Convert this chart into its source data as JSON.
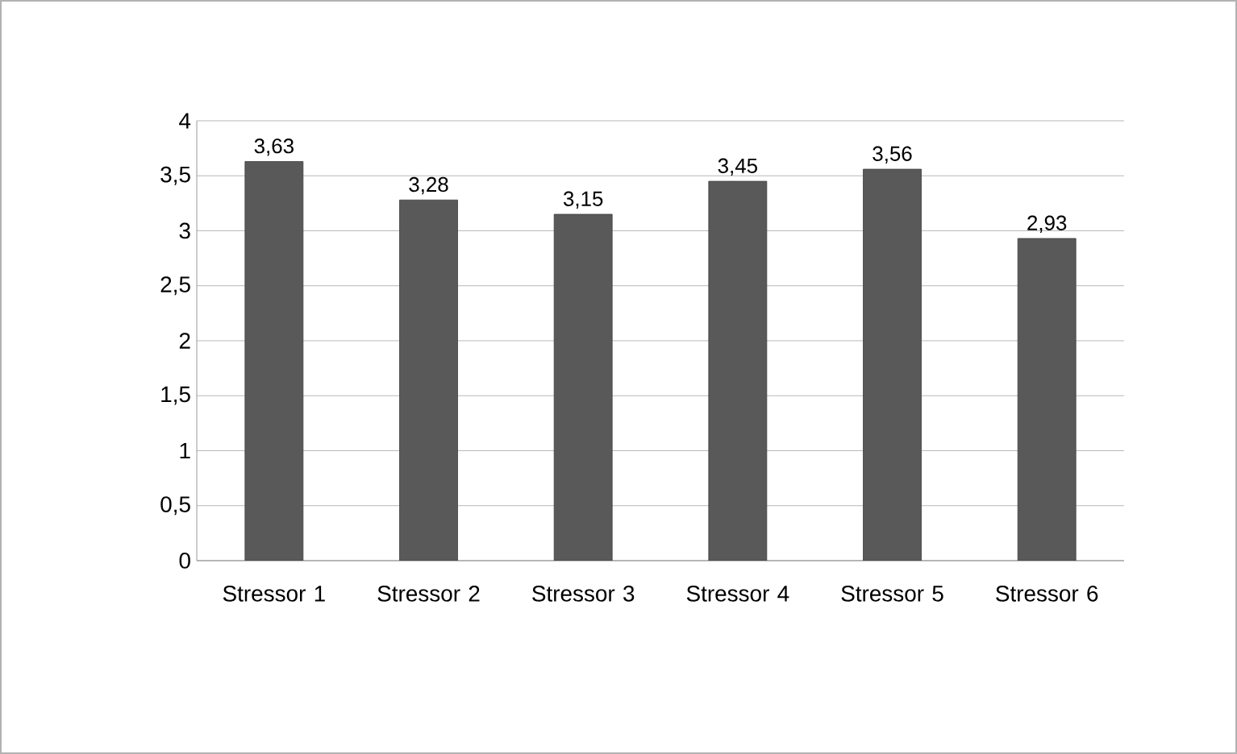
{
  "chart_data": {
    "type": "bar",
    "categories": [
      "Stressor 1",
      "Stressor 2",
      "Stressor 3",
      "Stressor 4",
      "Stressor 5",
      "Stressor 6"
    ],
    "values": [
      3.63,
      3.28,
      3.15,
      3.45,
      3.56,
      2.93
    ],
    "value_labels": [
      "3,63",
      "3,28",
      "3,15",
      "3,45",
      "3,56",
      "2,93"
    ],
    "color": "#595959",
    "ylim": [
      0,
      4
    ],
    "yticks": [
      0,
      {
        "value": 0.5,
        "label": "0,5"
      },
      1,
      {
        "value": 1.5,
        "label": "1,5"
      },
      2,
      {
        "value": 2.5,
        "label": "2,5"
      },
      3,
      {
        "value": 3.5,
        "label": "3,5"
      },
      4
    ],
    "grid": "y"
  }
}
